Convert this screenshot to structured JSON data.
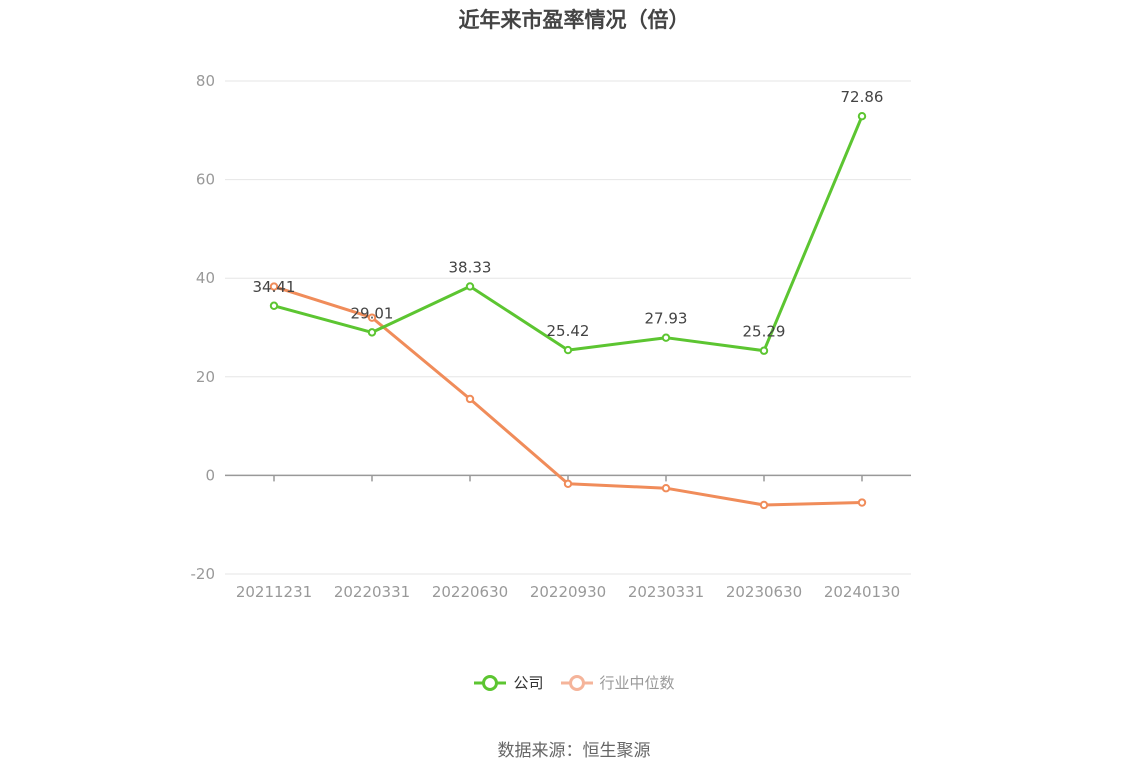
{
  "title": "近年来市盈率情况（倍）",
  "source": "数据来源：恒生聚源",
  "colors": {
    "company": "#5cc531",
    "industry": "#f08c5a",
    "industry_legend": "#f5b49a",
    "grid": "#e6e6e6",
    "axis": "#999999"
  },
  "chart_data": {
    "type": "line",
    "title": "近年来市盈率情况（倍）",
    "xlabel": "",
    "ylabel": "",
    "categories": [
      "20211231",
      "20220331",
      "20220630",
      "20220930",
      "20230331",
      "20230630",
      "20240130"
    ],
    "ylim": [
      -20,
      80
    ],
    "yticks": [
      -20,
      0,
      20,
      40,
      60,
      80
    ],
    "grid": true,
    "legend_position": "bottom",
    "series": [
      {
        "name": "公司",
        "values": [
          34.41,
          29.01,
          38.33,
          25.42,
          27.93,
          25.29,
          72.86
        ],
        "labels": [
          "34.41",
          "29.01",
          "38.33",
          "25.42",
          "27.93",
          "25.29",
          "72.86"
        ]
      },
      {
        "name": "行业中位数",
        "values": [
          38.3,
          32.0,
          15.5,
          -1.7,
          -2.6,
          -6.0,
          -5.5
        ]
      }
    ]
  }
}
